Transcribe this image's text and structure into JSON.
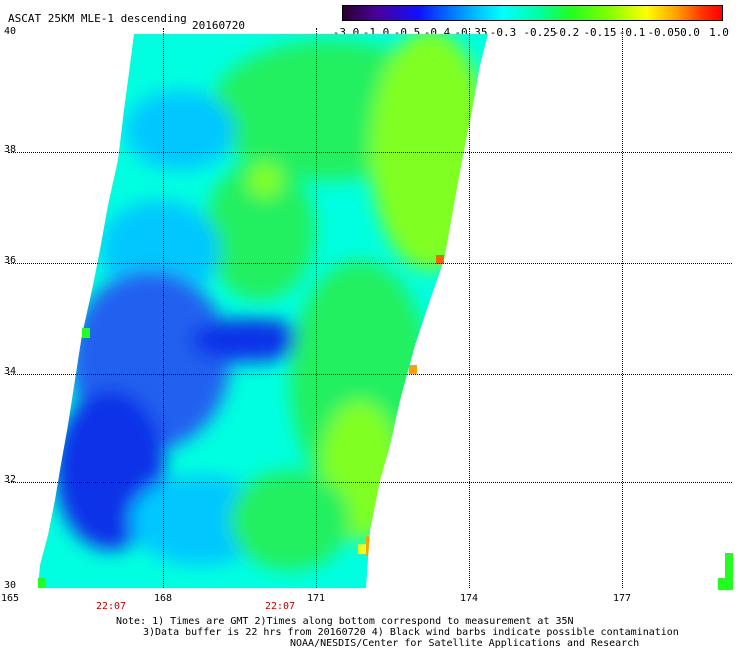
{
  "header": {
    "title": "ASCAT 25KM MLE-1 descending",
    "date": "20160720"
  },
  "colorbar": {
    "labels": [
      "-3.0",
      "-1.0",
      "-0.5",
      "-0.4",
      "-0.35",
      "-0.3",
      "-0.25",
      "-0.2",
      "-0.15",
      "-0.1",
      "-0.05",
      "0.0",
      "1.0"
    ]
  },
  "map": {
    "lat_labels": [
      "40",
      "38",
      "36",
      "34",
      "32",
      "30"
    ],
    "lon_labels": [
      "165",
      "168",
      "171",
      "174",
      "177"
    ],
    "time_labels": [
      "22:07",
      "22:07"
    ],
    "colors": {
      "deep_blue": "#1030e8",
      "blue": "#2060f0",
      "light_blue": "#00c8ff",
      "cyan": "#00ffe0",
      "green": "#20f060",
      "lime": "#80ff20",
      "yellow": "#e8ff20",
      "orange": "#ffa000",
      "red_orange": "#ff6000"
    }
  },
  "notes": {
    "line1": "Note: 1) Times are GMT 2)Times along bottom correspond to measurement at 35N",
    "line2": "3)Data buffer is 22 hrs from 20160720 4) Black wind barbs indicate possible contamination",
    "line3": "NOAA/NESDIS/Center for Satellite Applications and Research"
  }
}
